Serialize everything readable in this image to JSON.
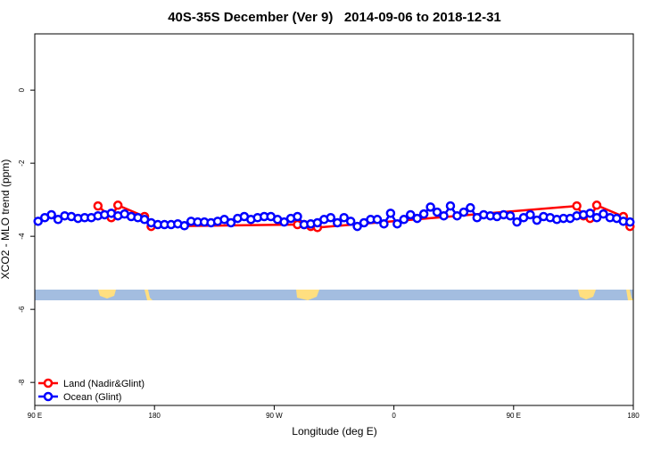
{
  "chart_data": {
    "type": "line",
    "title": "40S-35S December (Ver 9)   2014-09-06 to 2018-12-31",
    "x_label": "Longitude (deg E)",
    "y_label": "XCO2 - MLO trend (ppm)",
    "xlim": [
      90,
      540
    ],
    "ylim": [
      -8.63,
      1.54
    ],
    "xticks": [
      {
        "value": 90,
        "label": "90 E"
      },
      180,
      {
        "value": 270,
        "label": "90 W"
      },
      {
        "value": 360,
        "label": "0"
      },
      {
        "value": 450,
        "label": "90 E"
      },
      {
        "value": 540,
        "label": "180"
      }
    ],
    "yticks": [
      0,
      -2,
      -4,
      -6,
      -8
    ],
    "legend": "bottom-left",
    "series": [
      {
        "name": "Land (Nadir&Glint)",
        "color": "#ff0000",
        "x": [
          137.5,
          147.5,
          152.5,
          172.5,
          177.5,
          287.5,
          292.5,
          297.5,
          302.5,
          497.5,
          502.5,
          507.5,
          512.5,
          532.5,
          537.5
        ],
        "values": [
          -3.17,
          -3.49,
          -3.15,
          -3.46,
          -3.73,
          -3.68,
          -3.68,
          -3.73,
          -3.76,
          -3.17,
          -3.44,
          -3.51,
          -3.15,
          -3.46,
          -3.73
        ]
      },
      {
        "name": "Ocean (Glint)",
        "color": "#0000ff",
        "x": [
          92.5,
          97.5,
          102.5,
          107.5,
          112.5,
          117.5,
          122.5,
          127.5,
          132.5,
          137.5,
          142.5,
          147.5,
          152.5,
          157.5,
          162.5,
          167.5,
          172.5,
          177.5,
          182.5,
          187.5,
          192.5,
          197.5,
          202.5,
          207.5,
          212.5,
          217.5,
          222.5,
          227.5,
          232.5,
          237.5,
          242.5,
          247.5,
          252.5,
          257.5,
          262.5,
          267.5,
          272.5,
          277.5,
          282.5,
          287.5,
          292.5,
          297.5,
          302.5,
          307.5,
          312.5,
          317.5,
          322.5,
          327.5,
          332.5,
          337.5,
          342.5,
          347.5,
          352.5,
          357.5,
          362.5,
          367.5,
          372.5,
          377.5,
          382.5,
          387.5,
          392.5,
          397.5,
          402.5,
          407.5,
          412.5,
          417.5,
          422.5,
          427.5,
          432.5,
          437.5,
          442.5,
          447.5,
          452.5,
          457.5,
          462.5,
          467.5,
          472.5,
          477.5,
          482.5,
          487.5,
          492.5,
          497.5,
          502.5,
          507.5,
          512.5,
          517.5,
          522.5,
          527.5,
          532.5,
          537.5
        ],
        "values": [
          -3.59,
          -3.49,
          -3.41,
          -3.54,
          -3.44,
          -3.46,
          -3.51,
          -3.49,
          -3.49,
          -3.44,
          -3.41,
          -3.37,
          -3.44,
          -3.39,
          -3.46,
          -3.49,
          -3.54,
          -3.63,
          -3.68,
          -3.68,
          -3.68,
          -3.66,
          -3.71,
          -3.59,
          -3.61,
          -3.61,
          -3.63,
          -3.59,
          -3.54,
          -3.63,
          -3.51,
          -3.46,
          -3.54,
          -3.49,
          -3.46,
          -3.46,
          -3.54,
          -3.61,
          -3.51,
          -3.46,
          -3.68,
          -3.66,
          -3.63,
          -3.54,
          -3.49,
          -3.63,
          -3.49,
          -3.59,
          -3.73,
          -3.63,
          -3.54,
          -3.54,
          -3.66,
          -3.37,
          -3.66,
          -3.54,
          -3.41,
          -3.51,
          -3.39,
          -3.2,
          -3.34,
          -3.44,
          -3.17,
          -3.44,
          -3.34,
          -3.22,
          -3.49,
          -3.41,
          -3.44,
          -3.46,
          -3.41,
          -3.44,
          -3.61,
          -3.49,
          -3.41,
          -3.56,
          -3.46,
          -3.49,
          -3.54,
          -3.51,
          -3.51,
          -3.44,
          -3.41,
          -3.37,
          -3.49,
          -3.39,
          -3.49,
          -3.51,
          -3.59,
          -3.61
        ]
      }
    ]
  }
}
